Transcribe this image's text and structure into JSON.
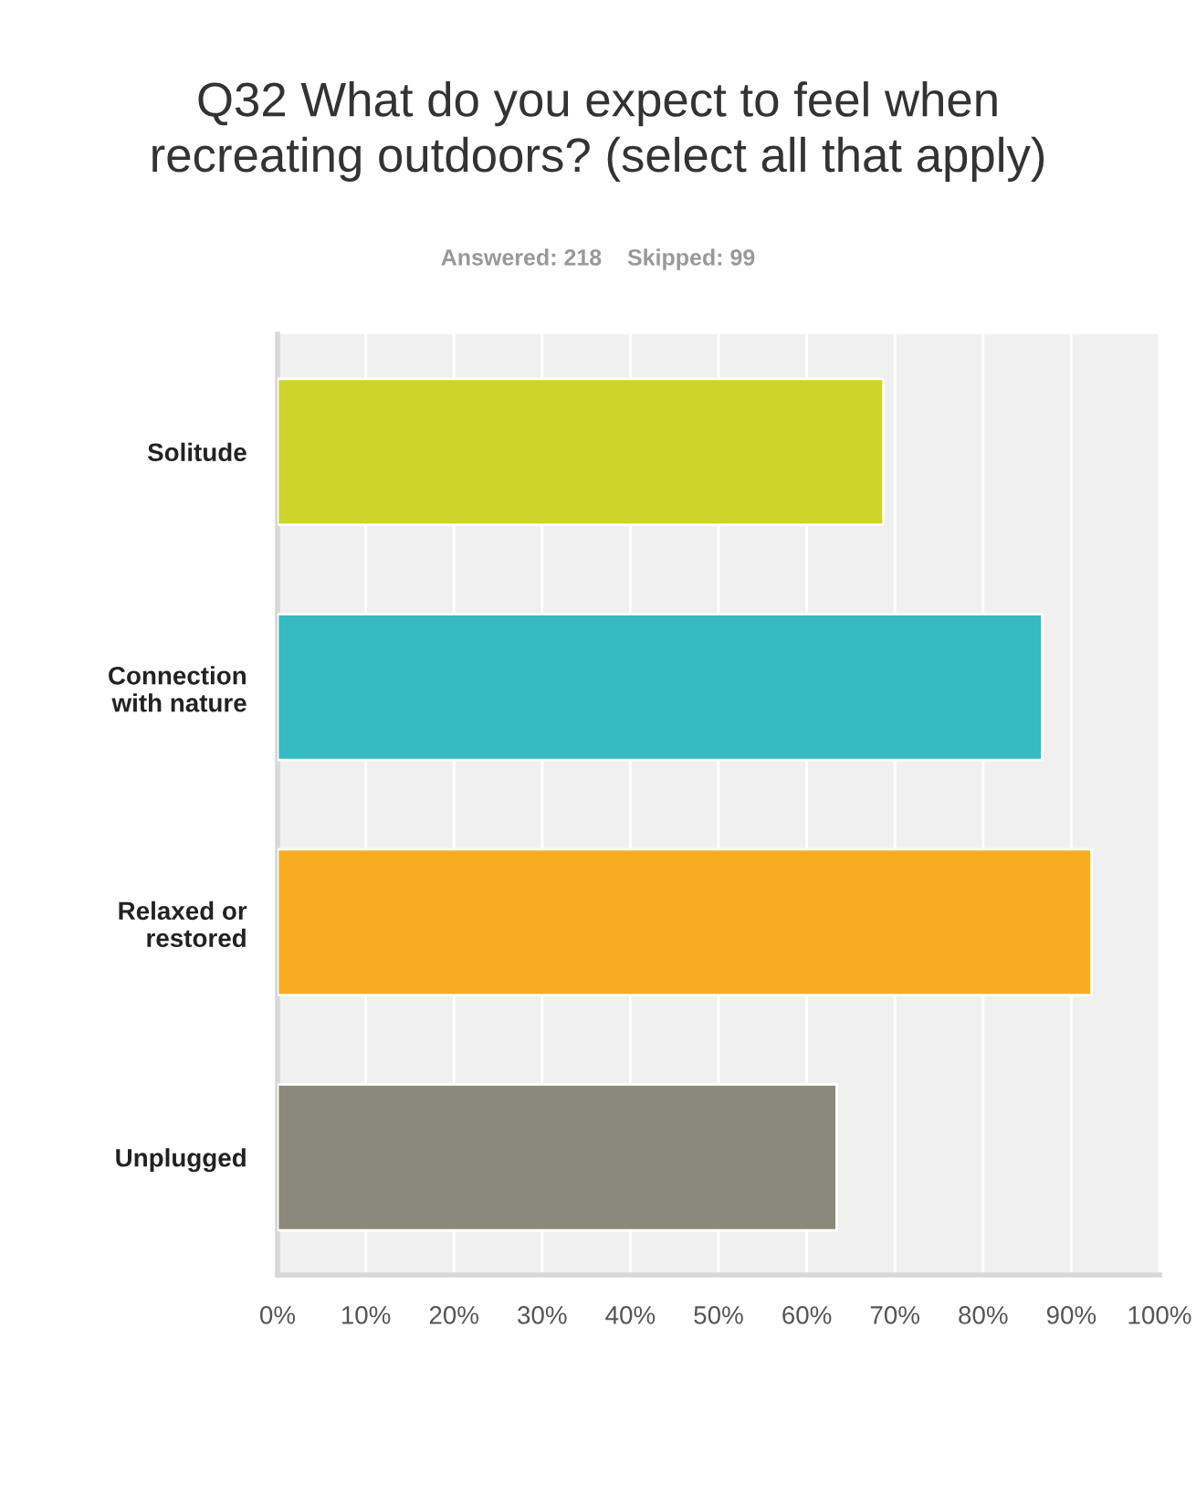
{
  "chart_data": {
    "type": "bar",
    "orientation": "horizontal",
    "title": "Q32 What do you expect to feel when\nrecreating outdoors? (select all that apply)",
    "subtitle": "Answered: 218    Skipped: 99",
    "categories": [
      "Solitude",
      "Connection\nwith nature",
      "Relaxed or\nrestored",
      "Unplugged"
    ],
    "values": [
      68.7,
      86.7,
      92.3,
      63.4
    ],
    "colors": [
      "#cdd42a",
      "#35bbbf",
      "#f8ad20",
      "#8b8a7a"
    ],
    "xlim": [
      0,
      100
    ],
    "xticks": [
      {
        "value": 0,
        "label": "0%"
      },
      {
        "value": 10,
        "label": "10%"
      },
      {
        "value": 20,
        "label": "20%"
      },
      {
        "value": 30,
        "label": "30%"
      },
      {
        "value": 40,
        "label": "40%"
      },
      {
        "value": 50,
        "label": "50%"
      },
      {
        "value": 60,
        "label": "60%"
      },
      {
        "value": 70,
        "label": "70%"
      },
      {
        "value": 80,
        "label": "80%"
      },
      {
        "value": 90,
        "label": "90%"
      },
      {
        "value": 100,
        "label": "100%"
      }
    ],
    "grid": "x"
  }
}
